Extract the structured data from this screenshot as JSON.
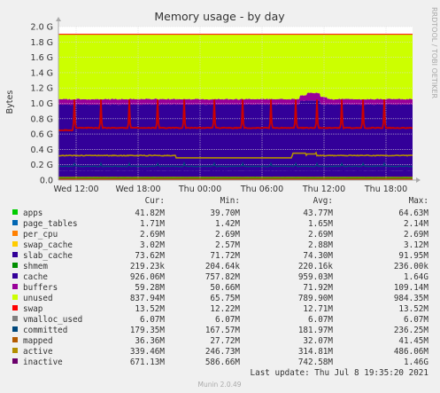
{
  "chart_data": {
    "type": "area",
    "title": "Memory usage - by day",
    "ylabel": "Bytes",
    "side_label": "RRDTOOL / TOBI OETIKER",
    "ylim": [
      0,
      2.0
    ],
    "y_unit": "G",
    "y_ticks": [
      "0.0",
      "0.2 G",
      "0.4 G",
      "0.6 G",
      "0.8 G",
      "1.0 G",
      "1.2 G",
      "1.4 G",
      "1.6 G",
      "1.8 G",
      "2.0 G"
    ],
    "x_ticks": [
      "Wed 12:00",
      "Wed 18:00",
      "Thu 00:00",
      "Thu 06:00",
      "Thu 12:00",
      "Thu 18:00"
    ],
    "grid": true,
    "legend_header": [
      "Cur:",
      "Min:",
      "Avg:",
      "Max:"
    ],
    "series": [
      {
        "name": "apps",
        "color": "#00cc00",
        "cur": "41.82M",
        "min": "39.70M",
        "avg": "43.77M",
        "max": "64.63M"
      },
      {
        "name": "page_tables",
        "color": "#0066b3",
        "cur": "1.71M",
        "min": "1.42M",
        "avg": "1.65M",
        "max": "2.14M"
      },
      {
        "name": "per_cpu",
        "color": "#ff8000",
        "cur": "2.69M",
        "min": "2.69M",
        "avg": "2.69M",
        "max": "2.69M"
      },
      {
        "name": "swap_cache",
        "color": "#ffcc00",
        "cur": "3.02M",
        "min": "2.57M",
        "avg": "2.88M",
        "max": "3.12M"
      },
      {
        "name": "slab_cache",
        "color": "#330099",
        "cur": "73.62M",
        "min": "71.72M",
        "avg": "74.30M",
        "max": "91.95M"
      },
      {
        "name": "shmem",
        "color": "#008f00",
        "cur": "219.23k",
        "min": "204.64k",
        "avg": "220.16k",
        "max": "236.00k"
      },
      {
        "name": "cache",
        "color": "#330099",
        "cur": "926.06M",
        "min": "757.82M",
        "avg": "959.03M",
        "max": "1.64G"
      },
      {
        "name": "buffers",
        "color": "#990099",
        "cur": "59.28M",
        "min": "50.66M",
        "avg": "71.92M",
        "max": "109.14M"
      },
      {
        "name": "unused",
        "color": "#ccff00",
        "cur": "837.94M",
        "min": "65.75M",
        "avg": "789.90M",
        "max": "984.35M"
      },
      {
        "name": "swap",
        "color": "#ff0000",
        "cur": "13.52M",
        "min": "12.22M",
        "avg": "12.71M",
        "max": "13.52M"
      },
      {
        "name": "vmalloc_used",
        "color": "#808080",
        "cur": "6.07M",
        "min": "6.07M",
        "avg": "6.07M",
        "max": "6.07M"
      },
      {
        "name": "committed",
        "color": "#00487d",
        "cur": "179.35M",
        "min": "167.57M",
        "avg": "181.97M",
        "max": "236.25M"
      },
      {
        "name": "mapped",
        "color": "#b35a00",
        "cur": "36.36M",
        "min": "27.72M",
        "avg": "32.07M",
        "max": "41.45M"
      },
      {
        "name": "active",
        "color": "#b38f00",
        "cur": "339.46M",
        "min": "246.73M",
        "avg": "314.81M",
        "max": "486.06M"
      },
      {
        "name": "inactive",
        "color": "#6b006b",
        "cur": "671.13M",
        "min": "586.66M",
        "avg": "742.58M",
        "max": "1.46G"
      }
    ]
  },
  "footer": {
    "last_update": "Last update: Thu Jul  8 19:35:20 2021",
    "version": "Munin 2.0.49"
  }
}
